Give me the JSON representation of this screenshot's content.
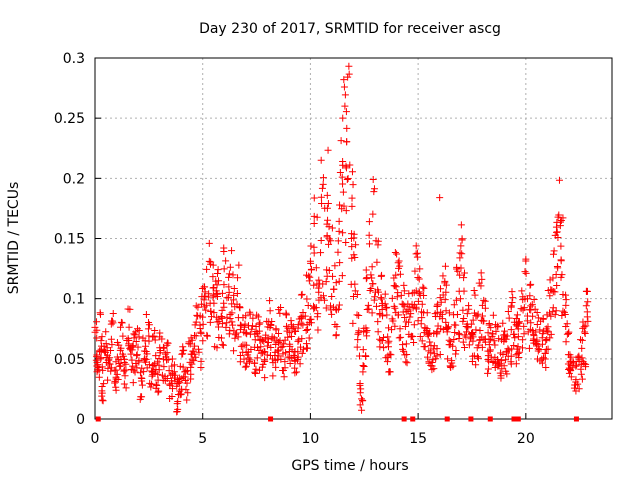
{
  "chart_data": {
    "type": "scatter",
    "title": "Day 230 of 2017, SRMTID for receiver ascg",
    "xlabel": "GPS time / hours",
    "ylabel": "SRMTID / TECUs",
    "xlim": [
      0,
      24
    ],
    "ylim": [
      0,
      0.3
    ],
    "xticks": [
      0,
      5,
      10,
      15,
      20
    ],
    "yticks": [
      0,
      0.05,
      0.1,
      0.15,
      0.2,
      0.25,
      0.3
    ],
    "xtick_labels": [
      "0",
      "5",
      "10",
      "15",
      "20"
    ],
    "ytick_labels": [
      "0",
      "0.05",
      "0.1",
      "0.15",
      "0.2",
      "0.25",
      "0.3"
    ],
    "grid": true,
    "marker": "+",
    "color": "#ff0000",
    "series": [
      {
        "name": "SRMTID",
        "x": [
          0.05,
          0.15,
          0.25,
          0.35,
          0.5,
          0.65,
          0.8,
          0.95,
          1.1,
          1.25,
          1.4,
          1.55,
          1.7,
          1.85,
          2.0,
          2.15,
          2.3,
          2.45,
          2.6,
          2.75,
          2.9,
          3.05,
          3.2,
          3.35,
          3.5,
          3.65,
          3.8,
          3.95,
          4.1,
          4.25,
          4.4,
          4.55,
          4.7,
          4.85,
          5.0,
          5.15,
          5.3,
          5.45,
          5.6,
          5.75,
          5.9,
          6.05,
          6.2,
          6.35,
          6.5,
          6.65,
          6.8,
          6.95,
          7.1,
          7.25,
          7.4,
          7.55,
          7.7,
          7.85,
          8.0,
          8.15,
          8.3,
          8.45,
          8.6,
          8.75,
          8.9,
          9.05,
          9.2,
          9.35,
          9.5,
          9.65,
          9.8,
          9.95,
          10.1,
          10.25,
          10.4,
          10.55,
          10.7,
          10.85,
          11.0,
          11.15,
          11.3,
          11.45,
          11.6,
          11.75,
          11.9,
          12.05,
          12.2,
          12.35,
          12.5,
          12.65,
          12.8,
          12.95,
          13.1,
          13.25,
          13.4,
          13.55,
          13.7,
          13.85,
          14.0,
          14.15,
          14.3,
          14.45,
          14.6,
          14.75,
          14.9,
          15.05,
          15.2,
          15.35,
          15.5,
          15.65,
          15.8,
          15.95,
          16.1,
          16.25,
          16.4,
          16.55,
          16.7,
          16.85,
          17.0,
          17.15,
          17.3,
          17.45,
          17.6,
          17.75,
          17.9,
          18.05,
          18.2,
          18.35,
          18.5,
          18.65,
          18.8,
          18.95,
          19.1,
          19.25,
          19.4,
          19.55,
          19.7,
          19.85,
          20.0,
          20.15,
          20.3,
          20.45,
          20.6,
          20.75,
          20.9,
          21.05,
          21.2,
          21.35,
          21.5,
          21.65,
          21.8,
          21.95,
          22.1,
          22.25,
          22.4,
          22.55,
          22.7,
          22.85
        ],
        "y": [
          0.06,
          0.045,
          0.07,
          0.03,
          0.055,
          0.04,
          0.065,
          0.035,
          0.05,
          0.06,
          0.04,
          0.07,
          0.045,
          0.055,
          0.06,
          0.03,
          0.05,
          0.065,
          0.04,
          0.055,
          0.035,
          0.06,
          0.045,
          0.05,
          0.03,
          0.04,
          0.02,
          0.035,
          0.045,
          0.03,
          0.05,
          0.06,
          0.07,
          0.065,
          0.085,
          0.1,
          0.11,
          0.12,
          0.09,
          0.1,
          0.08,
          0.11,
          0.095,
          0.12,
          0.085,
          0.1,
          0.07,
          0.065,
          0.06,
          0.07,
          0.055,
          0.065,
          0.06,
          0.05,
          0.065,
          0.075,
          0.055,
          0.06,
          0.07,
          0.05,
          0.075,
          0.065,
          0.06,
          0.055,
          0.07,
          0.08,
          0.09,
          0.1,
          0.12,
          0.14,
          0.11,
          0.15,
          0.13,
          0.17,
          0.12,
          0.1,
          0.14,
          0.18,
          0.22,
          0.24,
          0.16,
          0.12,
          0.08,
          0.02,
          0.06,
          0.1,
          0.13,
          0.15,
          0.11,
          0.09,
          0.08,
          0.07,
          0.06,
          0.09,
          0.12,
          0.1,
          0.085,
          0.07,
          0.09,
          0.08,
          0.11,
          0.1,
          0.09,
          0.06,
          0.07,
          0.05,
          0.065,
          0.075,
          0.09,
          0.1,
          0.07,
          0.06,
          0.08,
          0.1,
          0.12,
          0.09,
          0.07,
          0.06,
          0.08,
          0.065,
          0.09,
          0.075,
          0.055,
          0.06,
          0.07,
          0.065,
          0.05,
          0.06,
          0.055,
          0.07,
          0.08,
          0.065,
          0.06,
          0.08,
          0.1,
          0.09,
          0.075,
          0.085,
          0.07,
          0.065,
          0.06,
          0.08,
          0.09,
          0.12,
          0.15,
          0.13,
          0.09,
          0.06,
          0.045,
          0.035,
          0.04,
          0.05,
          0.06,
          0.08
        ]
      }
    ],
    "markers_at_zero_x": [
      0.15,
      8.15,
      14.35,
      14.75,
      16.35,
      17.45,
      18.35,
      19.45,
      19.55,
      19.65,
      22.35
    ]
  }
}
